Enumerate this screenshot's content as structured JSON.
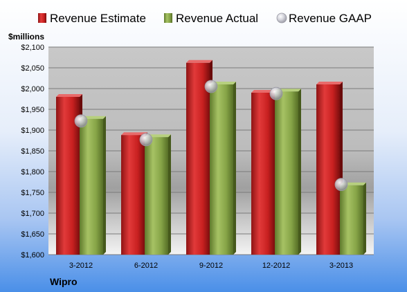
{
  "chart_data": {
    "type": "bar",
    "unit_label": "$millions",
    "company": "Wipro",
    "categories": [
      "3-2012",
      "6-2012",
      "9-2012",
      "12-2012",
      "3-2013"
    ],
    "series": [
      {
        "name": "Revenue Estimate",
        "kind": "bar",
        "color": "#d42a2a",
        "values": [
          1980,
          1888,
          2062,
          1990,
          2010
        ]
      },
      {
        "name": "Revenue Actual",
        "kind": "bar",
        "color": "#8fac4e",
        "values": [
          1927,
          1883,
          2010,
          1993,
          1767
        ]
      },
      {
        "name": "Revenue GAAP",
        "kind": "marker",
        "color": "#c8c8d0",
        "values": [
          1922,
          1877,
          2005,
          1988,
          1769
        ]
      }
    ],
    "ylim": [
      1600,
      2100
    ],
    "yticks": [
      1600,
      1650,
      1700,
      1750,
      1800,
      1850,
      1900,
      1950,
      2000,
      2050,
      2100
    ],
    "ytick_labels": [
      "$1,600",
      "$1,650",
      "$1,700",
      "$1,750",
      "$1,800",
      "$1,850",
      "$1,900",
      "$1,950",
      "$2,000",
      "$2,050",
      "$2,100"
    ],
    "grid": true,
    "legend_position": "top"
  }
}
